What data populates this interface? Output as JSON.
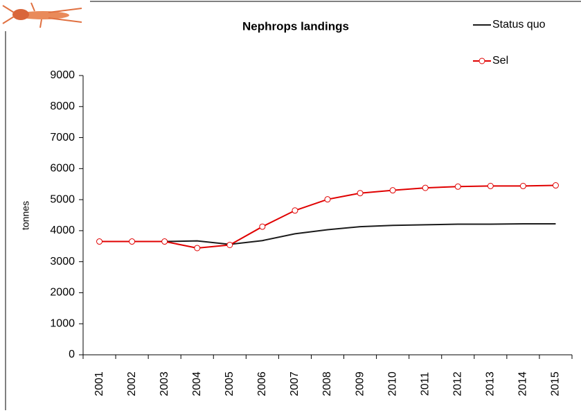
{
  "chart_data": {
    "type": "line",
    "title": "Nephrops landings",
    "y_label": "tonnes",
    "categories": [
      "2001",
      "2002",
      "2003",
      "2004",
      "2005",
      "2006",
      "2007",
      "2008",
      "2009",
      "2010",
      "2011",
      "2012",
      "2013",
      "2014",
      "2015"
    ],
    "series": [
      {
        "name": "Status quo",
        "color": "#1a1a1a",
        "marker": false,
        "values": [
          3650,
          3650,
          3650,
          3670,
          3560,
          3680,
          3900,
          4030,
          4130,
          4170,
          4190,
          4210,
          4210,
          4220,
          4220
        ]
      },
      {
        "name": "Sel",
        "color": "#e00000",
        "marker": true,
        "values": [
          3650,
          3650,
          3650,
          3440,
          3540,
          4130,
          4650,
          5010,
          5210,
          5300,
          5380,
          5420,
          5440,
          5440,
          5460
        ]
      }
    ],
    "ylim": [
      0,
      9000
    ],
    "yticks": [
      0,
      1000,
      2000,
      3000,
      4000,
      5000,
      6000,
      7000,
      8000,
      9000
    ],
    "grid": false,
    "legend": "top-right"
  }
}
